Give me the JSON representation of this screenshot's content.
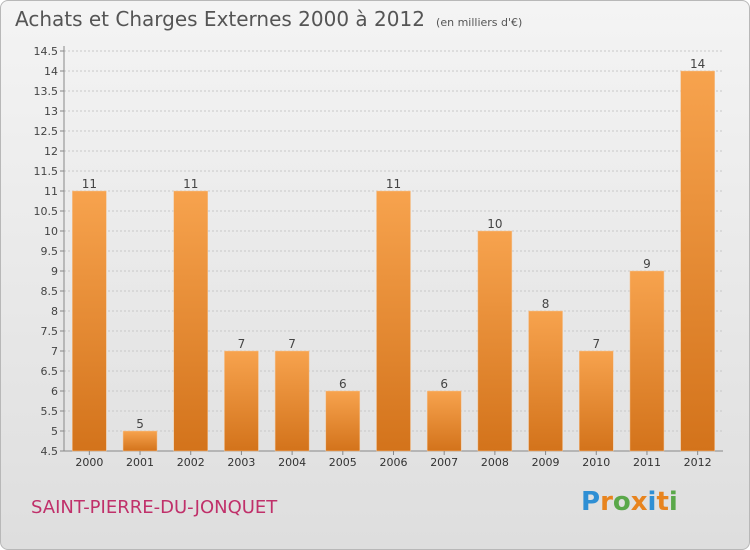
{
  "header": {
    "title": "Achats et Charges Externes 2000 à 2012",
    "subtitle": "(en milliers d'€)"
  },
  "footer": {
    "commune": "SAINT-PIERRE-DU-JONQUET",
    "logo_text": "Proxiti"
  },
  "colors": {
    "bar_top": "#f7a34e",
    "bar_bottom": "#d3731b",
    "commune_text": "#c0306a"
  },
  "chart_data": {
    "type": "bar",
    "categories": [
      "2000",
      "2001",
      "2002",
      "2003",
      "2004",
      "2005",
      "2006",
      "2007",
      "2008",
      "2009",
      "2010",
      "2011",
      "2012"
    ],
    "values": [
      11,
      5,
      11,
      7,
      7,
      6,
      11,
      6,
      10,
      8,
      7,
      9,
      14
    ],
    "ylim": [
      4.5,
      14.5
    ],
    "yticks": [
      "4.5",
      "5",
      "5.5",
      "6",
      "6.5",
      "7",
      "7.5",
      "8",
      "8.5",
      "9",
      "9.5",
      "10",
      "10.5",
      "11",
      "11.5",
      "12",
      "12.5",
      "13",
      "13.5",
      "14",
      "14.5"
    ],
    "grid": true
  }
}
